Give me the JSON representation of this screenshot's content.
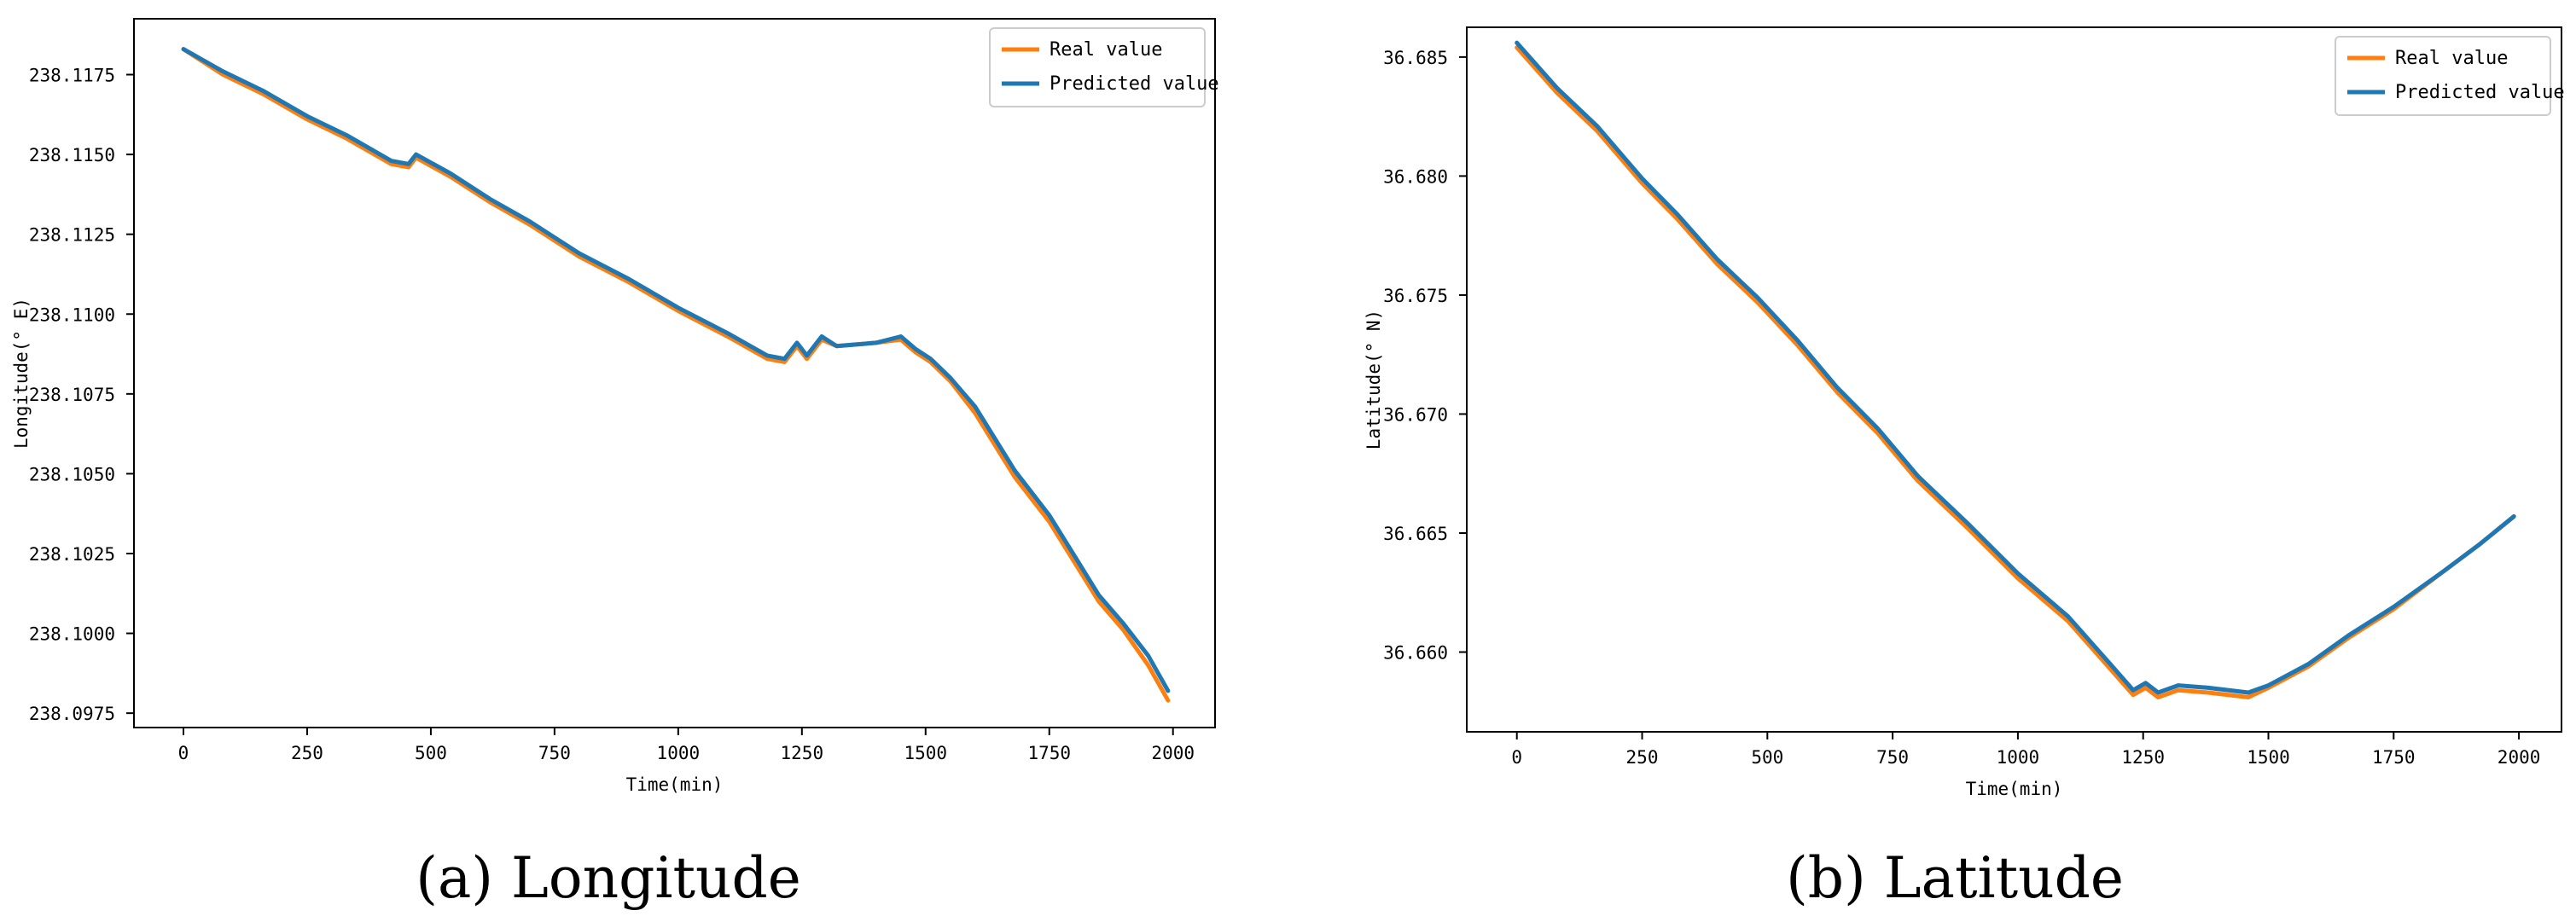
{
  "colors": {
    "real": "#ff7f0e",
    "predicted": "#1f77b4"
  },
  "chart_data": [
    {
      "type": "line",
      "title": "",
      "caption": "(a)  Longitude",
      "xlabel": "Time(min)",
      "ylabel": "Longitude(° E)",
      "xlim": [
        -100,
        2085
      ],
      "ylim": [
        238.09705,
        238.11925
      ],
      "xticks": [
        0,
        250,
        500,
        750,
        1000,
        1250,
        1500,
        1750,
        2000
      ],
      "xtick_labels": [
        "0",
        "250",
        "500",
        "750",
        "1000",
        "1250",
        "1500",
        "1750",
        "2000"
      ],
      "yticks": [
        238.0975,
        238.1,
        238.1025,
        238.105,
        238.1075,
        238.11,
        238.1125,
        238.115,
        238.1175
      ],
      "ytick_labels": [
        "238.0975",
        "238.1000",
        "238.1025",
        "238.1050",
        "238.1075",
        "238.1100",
        "238.1125",
        "238.1150",
        "238.1175"
      ],
      "legend": "top-right",
      "grid": false,
      "series": [
        {
          "name": "Real value",
          "x": [
            0,
            80,
            160,
            250,
            330,
            420,
            455,
            470,
            540,
            620,
            700,
            800,
            900,
            1000,
            1100,
            1180,
            1215,
            1240,
            1260,
            1290,
            1320,
            1400,
            1450,
            1480,
            1510,
            1550,
            1600,
            1680,
            1750,
            1810,
            1850,
            1900,
            1950,
            1990
          ],
          "y": [
            238.1183,
            238.1175,
            238.1169,
            238.1161,
            238.1155,
            238.1147,
            238.1146,
            238.1149,
            238.1143,
            238.1135,
            238.1128,
            238.1118,
            238.111,
            238.1101,
            238.1093,
            238.1086,
            238.1085,
            238.109,
            238.1086,
            238.1092,
            238.109,
            238.1091,
            238.1092,
            238.1088,
            238.1085,
            238.1079,
            238.1069,
            238.1049,
            238.1035,
            238.102,
            238.101,
            238.1001,
            238.099,
            238.0979
          ]
        },
        {
          "name": "Predicted value",
          "x": [
            0,
            80,
            160,
            250,
            330,
            420,
            455,
            470,
            540,
            620,
            700,
            800,
            900,
            1000,
            1100,
            1180,
            1215,
            1240,
            1260,
            1290,
            1320,
            1400,
            1450,
            1480,
            1510,
            1550,
            1600,
            1680,
            1750,
            1810,
            1850,
            1900,
            1950,
            1990
          ],
          "y": [
            238.1183,
            238.1176,
            238.117,
            238.1162,
            238.1156,
            238.1148,
            238.1147,
            238.115,
            238.1144,
            238.1136,
            238.1129,
            238.1119,
            238.1111,
            238.1102,
            238.1094,
            238.1087,
            238.1086,
            238.1091,
            238.1087,
            238.1093,
            238.109,
            238.1091,
            238.1093,
            238.1089,
            238.1086,
            238.108,
            238.1071,
            238.1051,
            238.1037,
            238.1022,
            238.1012,
            238.1003,
            238.0993,
            238.0982
          ]
        }
      ]
    },
    {
      "type": "line",
      "title": "",
      "caption": "(b)  Latitude",
      "xlabel": "Time(min)",
      "ylabel": "Latitude(° N)",
      "xlim": [
        -100,
        2085
      ],
      "ylim": [
        36.65665,
        36.68625
      ],
      "xticks": [
        0,
        250,
        500,
        750,
        1000,
        1250,
        1500,
        1750,
        2000
      ],
      "xtick_labels": [
        "0",
        "250",
        "500",
        "750",
        "1000",
        "1250",
        "1500",
        "1750",
        "2000"
      ],
      "yticks": [
        36.66,
        36.665,
        36.67,
        36.675,
        36.68,
        36.685
      ],
      "ytick_labels": [
        "36.660",
        "36.665",
        "36.670",
        "36.675",
        "36.680",
        "36.685"
      ],
      "legend": "top-right",
      "grid": false,
      "series": [
        {
          "name": "Real value",
          "x": [
            0,
            80,
            160,
            250,
            320,
            400,
            480,
            560,
            640,
            720,
            800,
            900,
            1000,
            1100,
            1180,
            1230,
            1255,
            1280,
            1320,
            1380,
            1460,
            1500,
            1580,
            1660,
            1750,
            1850,
            1920,
            1990
          ],
          "y": [
            36.6854,
            36.6835,
            36.6819,
            36.6797,
            36.6782,
            36.6763,
            36.6747,
            36.6729,
            36.6709,
            36.6692,
            36.6672,
            36.6652,
            36.6631,
            36.6613,
            36.6594,
            36.6582,
            36.6585,
            36.6581,
            36.6584,
            36.6583,
            36.6581,
            36.6585,
            36.6594,
            36.6606,
            36.6618,
            36.6634,
            36.6645,
            36.6657
          ]
        },
        {
          "name": "Predicted value",
          "x": [
            0,
            80,
            160,
            250,
            320,
            400,
            480,
            560,
            640,
            720,
            800,
            900,
            1000,
            1100,
            1180,
            1230,
            1255,
            1280,
            1320,
            1380,
            1460,
            1500,
            1580,
            1660,
            1750,
            1850,
            1920,
            1990
          ],
          "y": [
            36.6856,
            36.6837,
            36.6821,
            36.6799,
            36.6784,
            36.6765,
            36.6749,
            36.6731,
            36.6711,
            36.6694,
            36.6674,
            36.6654,
            36.6633,
            36.6615,
            36.6596,
            36.6584,
            36.6587,
            36.6583,
            36.6586,
            36.6585,
            36.6583,
            36.6586,
            36.6595,
            36.6607,
            36.6619,
            36.6634,
            36.6645,
            36.6657
          ]
        }
      ]
    }
  ]
}
